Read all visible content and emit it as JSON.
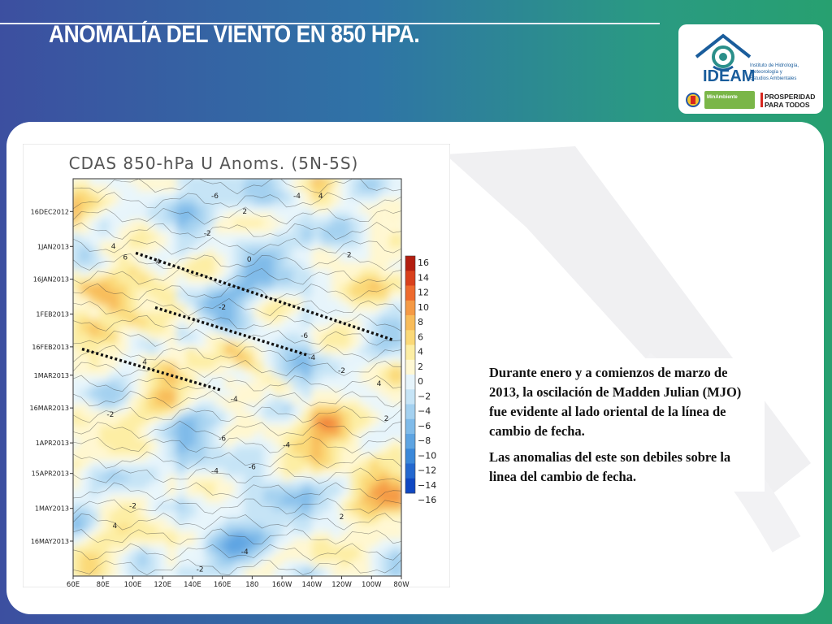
{
  "slide": {
    "title": "ANOMALÍA DEL VIENTO EN 850 HPA.",
    "paragraphs": [
      "Durante enero y a comienzos de marzo de 2013, la oscilación de Madden Julian (MJO) fue evidente al lado oriental de la línea de cambio de fecha.",
      "Las anomalias del este son debiles sobre la linea del cambio de fecha."
    ]
  },
  "logo": {
    "name": "IDEAM",
    "subtitle_lines": [
      "Instituto de Hidrología,",
      "Meteorología y",
      "Estudios Ambientales"
    ],
    "ministry": "MinAmbiente",
    "prosperity_lines": [
      "PROSPERIDAD",
      "PARA TODOS"
    ],
    "colors": {
      "ideam_blue": "#1a5d9c",
      "ideam_teal": "#2a8f8a",
      "ministry_green": "#7ab648",
      "prosperity_red": "#d7261e"
    }
  },
  "chart_data": {
    "type": "heatmap",
    "title": "CDAS 850-hPa U Anoms. (5N-5S)",
    "x_ticks": [
      "60E",
      "80E",
      "100E",
      "120E",
      "140E",
      "160E",
      "180",
      "160W",
      "140W",
      "120W",
      "100W",
      "80W"
    ],
    "x_range": [
      "60E",
      "80W"
    ],
    "y_ticks": [
      "16DEC2012",
      "1JAN2013",
      "16JAN2013",
      "1FEB2013",
      "16FEB2013",
      "1MAR2013",
      "16MAR2013",
      "1APR2013",
      "15APR2013",
      "1MAY2013",
      "16MAY2013"
    ],
    "colorbar_levels": [
      "16",
      "14",
      "12",
      "10",
      "8",
      "6",
      "4",
      "2",
      "0",
      "−2",
      "−4",
      "−6",
      "−8",
      "−10",
      "−12",
      "−14",
      "−16"
    ],
    "colorbar_colors": [
      "#b31e10",
      "#d9401c",
      "#ee6a2e",
      "#f59a45",
      "#f8bc5a",
      "#fbd978",
      "#fdeea4",
      "#fff8d4",
      "#e6f4fb",
      "#c6e4f6",
      "#a4d1f0",
      "#80bbe9",
      "#5ea4e2",
      "#3b88d9",
      "#2468cf",
      "#1048c2"
    ],
    "contour_labels": [
      {
        "text": "4",
        "lon": 87,
        "date": "2013-01-02"
      },
      {
        "text": "6",
        "lon": 95,
        "date": "2013-01-07"
      },
      {
        "text": "4",
        "lon": 117,
        "date": "2013-01-09"
      },
      {
        "text": "-6",
        "lon": 155,
        "date": "2012-12-10"
      },
      {
        "text": "-4",
        "lon": 210,
        "date": "2012-12-10"
      },
      {
        "text": "4",
        "lon": 226,
        "date": "2012-12-10"
      },
      {
        "text": "2",
        "lon": 175,
        "date": "2012-12-17"
      },
      {
        "text": "-2",
        "lon": 150,
        "date": "2012-12-27"
      },
      {
        "text": "0",
        "lon": 178,
        "date": "2013-01-08"
      },
      {
        "text": "2",
        "lon": 245,
        "date": "2013-01-06"
      },
      {
        "text": "-2",
        "lon": 160,
        "date": "2013-01-30"
      },
      {
        "text": "2",
        "lon": 285,
        "date": "2013-02-09"
      },
      {
        "text": "-6",
        "lon": 215,
        "date": "2013-02-12"
      },
      {
        "text": "6",
        "lon": 285,
        "date": "2013-02-13"
      },
      {
        "text": "4",
        "lon": 108,
        "date": "2013-02-24"
      },
      {
        "text": "-4",
        "lon": 220,
        "date": "2013-02-22"
      },
      {
        "text": "-2",
        "lon": 240,
        "date": "2013-02-28"
      },
      {
        "text": "4",
        "lon": 265,
        "date": "2013-03-06"
      },
      {
        "text": "-4",
        "lon": 168,
        "date": "2013-03-13"
      },
      {
        "text": "-2",
        "lon": 85,
        "date": "2013-03-20"
      },
      {
        "text": "2",
        "lon": 270,
        "date": "2013-03-22"
      },
      {
        "text": "-6",
        "lon": 160,
        "date": "2013-03-31"
      },
      {
        "text": "-4",
        "lon": 203,
        "date": "2013-04-03"
      },
      {
        "text": "-6",
        "lon": 180,
        "date": "2013-04-13"
      },
      {
        "text": "-4",
        "lon": 155,
        "date": "2013-04-15"
      },
      {
        "text": "-4",
        "lon": 175,
        "date": "2013-05-22"
      },
      {
        "text": "2",
        "lon": 240,
        "date": "2013-05-06"
      },
      {
        "text": "-2",
        "lon": 100,
        "date": "2013-05-01"
      },
      {
        "text": "4",
        "lon": 88,
        "date": "2013-05-10"
      },
      {
        "text": "-2",
        "lon": 145,
        "date": "2013-05-30"
      }
    ],
    "annotations": "dotted lines marking eastward-propagating MJO signals"
  }
}
